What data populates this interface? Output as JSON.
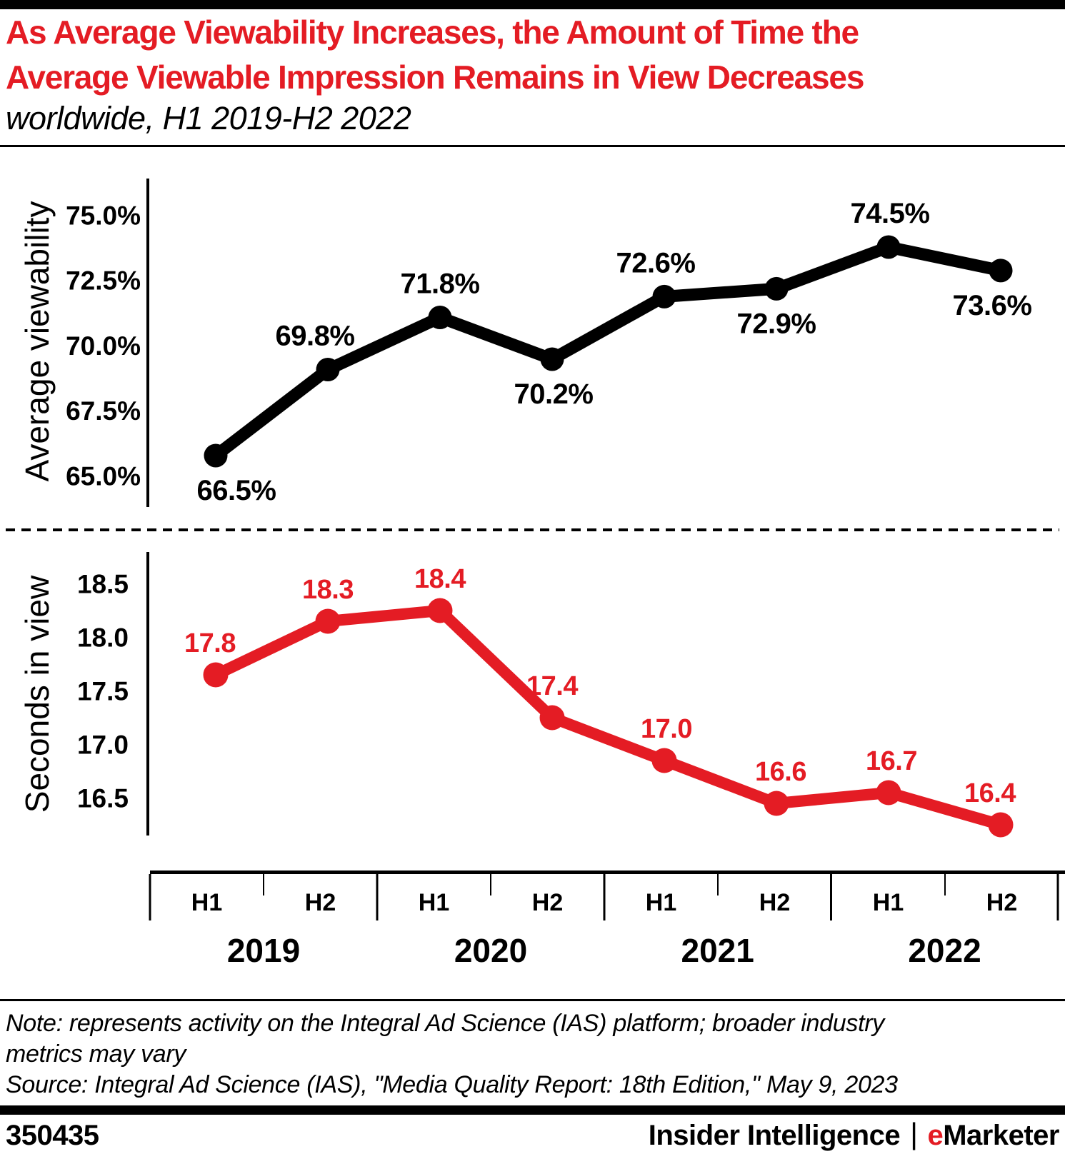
{
  "header": {
    "title_line1": "As Average Viewability Increases, the Amount of Time the",
    "title_line2": "Average Viewable Impression Remains in View Decreases",
    "subtitle": "worldwide, H1 2019-H2 2022"
  },
  "chart_data": [
    {
      "type": "line",
      "title": "Average viewability",
      "ylabel": "Average viewability",
      "categories": [
        "H1 2019",
        "H2 2019",
        "H1 2020",
        "H2 2020",
        "H1 2021",
        "H2 2021",
        "H1 2022",
        "H2 2022"
      ],
      "values": [
        66.5,
        69.8,
        71.8,
        70.2,
        72.6,
        72.9,
        74.5,
        73.6
      ],
      "point_labels": [
        "66.5%",
        "69.8%",
        "71.8%",
        "70.2%",
        "72.6%",
        "72.9%",
        "74.5%",
        "73.6%"
      ],
      "label_positions": [
        "below",
        "above",
        "above",
        "below",
        "above",
        "below",
        "above",
        "below"
      ],
      "ytick_values": [
        75.0,
        72.5,
        70.0,
        67.5,
        65.0
      ],
      "ytick_labels": [
        "75.0%",
        "72.5%",
        "70.0%",
        "67.5%",
        "65.0%"
      ],
      "ylim": [
        65.0,
        75.0
      ],
      "line_color": "#000000",
      "grid": false,
      "legend": "none"
    },
    {
      "type": "line",
      "title": "Seconds in view",
      "ylabel": "Seconds in view",
      "categories": [
        "H1 2019",
        "H2 2019",
        "H1 2020",
        "H2 2020",
        "H1 2021",
        "H2 2021",
        "H1 2022",
        "H2 2022"
      ],
      "values": [
        17.8,
        18.3,
        18.4,
        17.4,
        17.0,
        16.6,
        16.7,
        16.4
      ],
      "point_labels": [
        "17.8",
        "18.3",
        "18.4",
        "17.4",
        "17.0",
        "16.6",
        "16.7",
        "16.4"
      ],
      "label_positions": [
        "above",
        "above",
        "above",
        "above",
        "above",
        "above",
        "above",
        "above"
      ],
      "ytick_values": [
        18.5,
        18.0,
        17.5,
        17.0,
        16.5
      ],
      "ytick_labels": [
        "18.5",
        "18.0",
        "17.5",
        "17.0",
        "16.5"
      ],
      "ylim": [
        16.4,
        18.5
      ],
      "line_color": "#e41c24",
      "grid": false,
      "legend": "none"
    }
  ],
  "xaxis": {
    "half_labels": [
      "H1",
      "H2",
      "H1",
      "H2",
      "H1",
      "H2",
      "H1",
      "H2"
    ],
    "year_labels": [
      "2019",
      "2020",
      "2021",
      "2022"
    ]
  },
  "note": {
    "line1": "Note: represents activity on the Integral Ad Science (IAS) platform; broader industry",
    "line2": "metrics may vary",
    "source": "Source: Integral Ad Science (IAS), \"Media Quality Report: 18th Edition,\" May 9, 2023"
  },
  "footer": {
    "chart_id": "350435",
    "brand_left": "Insider Intelligence",
    "brand_divider": "|",
    "brand_e": "e",
    "brand_rest": "Marketer"
  },
  "colors": {
    "accent_red": "#e41c24",
    "black": "#000000",
    "background": "#ffffff"
  }
}
